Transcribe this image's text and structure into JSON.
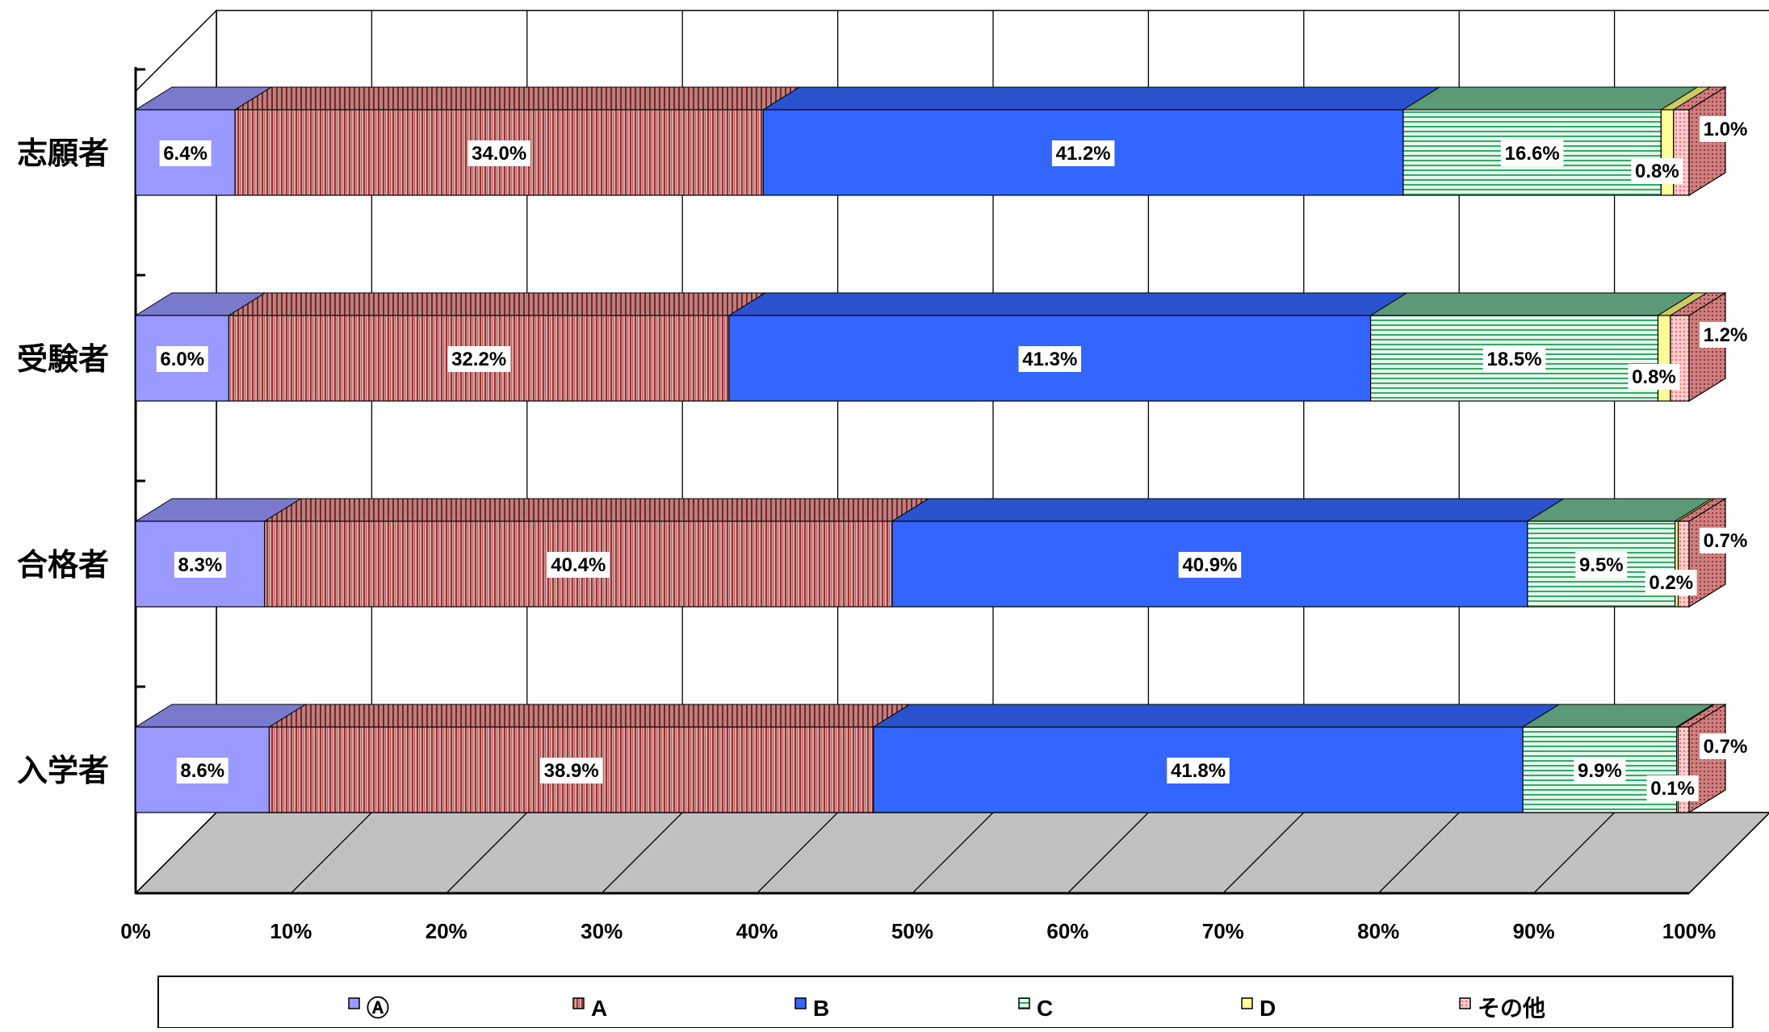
{
  "chart_data": {
    "type": "bar",
    "orientation": "horizontal",
    "stacked": "percent",
    "style_3d": true,
    "categories": [
      "志願者",
      "受験者",
      "合格者",
      "入学者"
    ],
    "series": [
      {
        "name": "Ⓐ",
        "color": "#9999ff",
        "values": [
          6.4,
          6.0,
          8.3,
          8.6
        ],
        "labels": [
          "6.4%",
          "6.0%",
          "8.3%",
          "8.6%"
        ]
      },
      {
        "name": "A",
        "color": "#993333",
        "values": [
          34.0,
          32.2,
          40.4,
          38.9
        ],
        "labels": [
          "34.0%",
          "32.2%",
          "40.4%",
          "38.9%"
        ]
      },
      {
        "name": "B",
        "color": "#3366ff",
        "values": [
          41.2,
          41.3,
          40.9,
          41.8
        ],
        "labels": [
          "41.2%",
          "41.3%",
          "40.9%",
          "41.8%"
        ]
      },
      {
        "name": "C",
        "color": "#66cc99",
        "values": [
          16.6,
          18.5,
          9.5,
          9.9
        ],
        "labels": [
          "16.6%",
          "18.5%",
          "9.5%",
          "9.9%"
        ]
      },
      {
        "name": "D",
        "color": "#ffff99",
        "values": [
          0.8,
          0.8,
          0.2,
          0.1
        ],
        "labels": [
          "0.8%",
          "0.8%",
          "0.2%",
          "0.1%"
        ]
      },
      {
        "name": "その他",
        "color": "#ff9999",
        "values": [
          1.0,
          1.2,
          0.7,
          0.7
        ],
        "labels": [
          "1.0%",
          "1.2%",
          "0.7%",
          "0.7%"
        ]
      }
    ],
    "x_ticks": [
      "0%",
      "10%",
      "20%",
      "30%",
      "40%",
      "50%",
      "60%",
      "70%",
      "80%",
      "90%",
      "100%"
    ],
    "xlim": [
      0,
      100
    ],
    "title": "",
    "xlabel": "",
    "ylabel": "",
    "grid": true,
    "legend_position": "bottom",
    "colors": {
      "floor": "#c0c0c0",
      "grid": "#000000",
      "background": "#ffffff"
    }
  }
}
